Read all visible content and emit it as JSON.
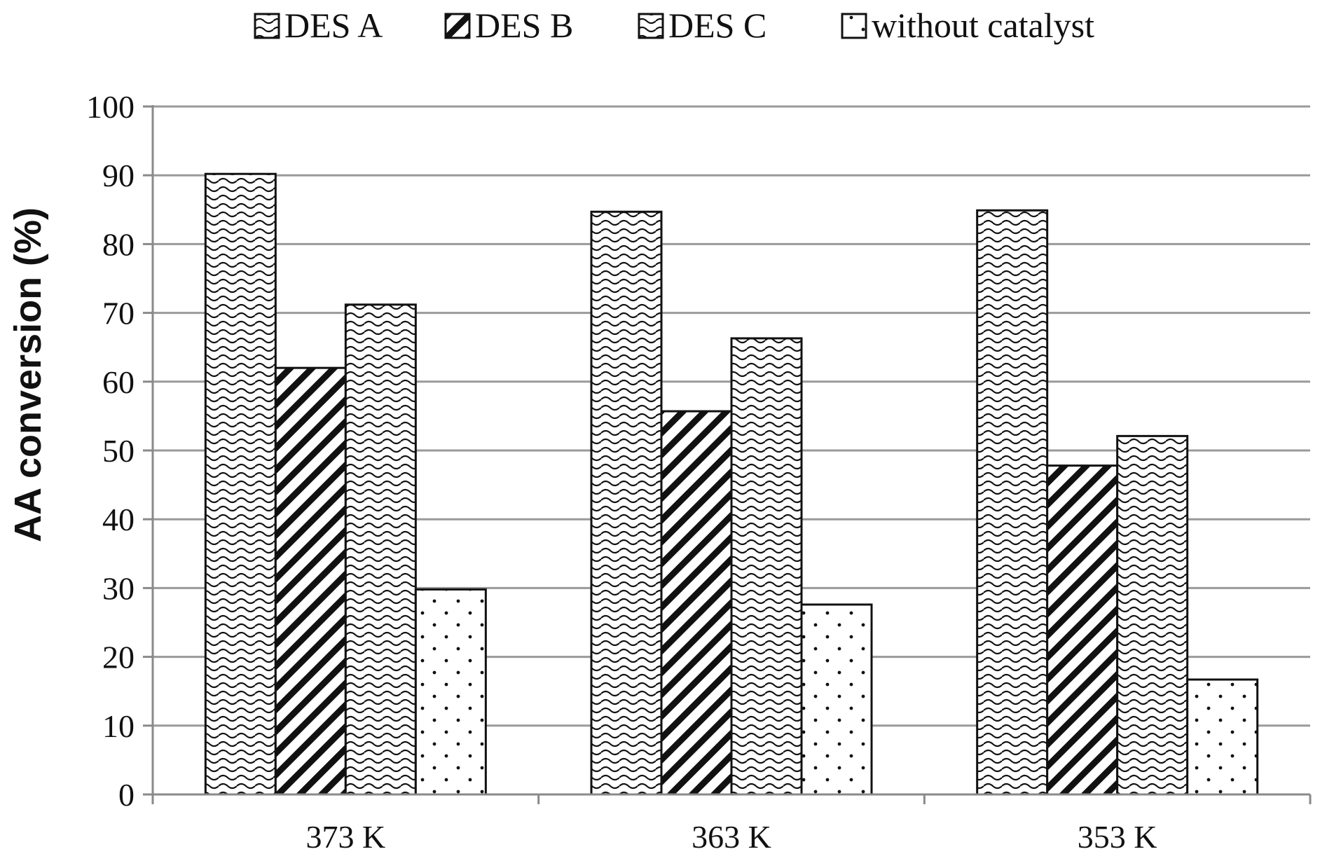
{
  "chart_data": {
    "type": "bar",
    "title": "",
    "xlabel": "",
    "ylabel": "AA conversion (%)",
    "ylim": [
      0,
      100
    ],
    "yticks": [
      0,
      10,
      20,
      30,
      40,
      50,
      60,
      70,
      80,
      90,
      100
    ],
    "grid": true,
    "legend_position": "top",
    "categories": [
      "373 K",
      "363 K",
      "353 K"
    ],
    "series": [
      {
        "name": "DES A",
        "values": [
          90.2,
          84.7,
          84.9
        ],
        "pattern": "wave"
      },
      {
        "name": "DES B",
        "values": [
          62.0,
          55.7,
          47.8
        ],
        "pattern": "diagonal-hatch"
      },
      {
        "name": "DES C",
        "values": [
          71.2,
          66.3,
          52.1
        ],
        "pattern": "wave"
      },
      {
        "name": "without catalyst",
        "values": [
          29.8,
          27.6,
          16.7
        ],
        "pattern": "dots"
      }
    ]
  }
}
